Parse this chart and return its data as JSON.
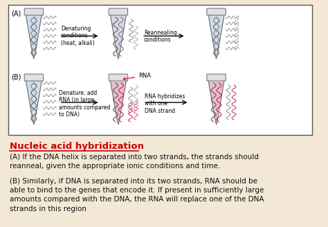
{
  "bg_color": "#f2e8d5",
  "box_bg": "#ffffff",
  "box_edge": "#555555",
  "title_text": "Nucleic acid hybridization",
  "title_color": "#cc0000",
  "para_a": "(A) If the DNA helix is separated into two strands, the strands should\nreanneal, given the appropriate ionic conditions and time.",
  "para_b": "(B) Similarly, if DNA is separated into its two strands, RNA should be\nable to bind to the genes that encode it. If present in sufficiently large\namounts compared with the DNA, the RNA will replace one of the DNA\nstrands in this region",
  "text_color": "#111111",
  "text_fontsize": 7.5,
  "title_fontsize": 9.5,
  "label_A": "(A)",
  "label_B": "(B)",
  "arrow1_label": "Denaturing\nconditions\n(heat, alkali)",
  "arrow2_label": "Reannealing\nconditions",
  "arrow3_label": "Denature; add\nRNA (in large\namounts compared\nto DNA)",
  "arrow4_label": "RNA hybridizes\nwith one\nDNA strand",
  "rna_label": "RNA",
  "font_family": "DejaVu Sans"
}
